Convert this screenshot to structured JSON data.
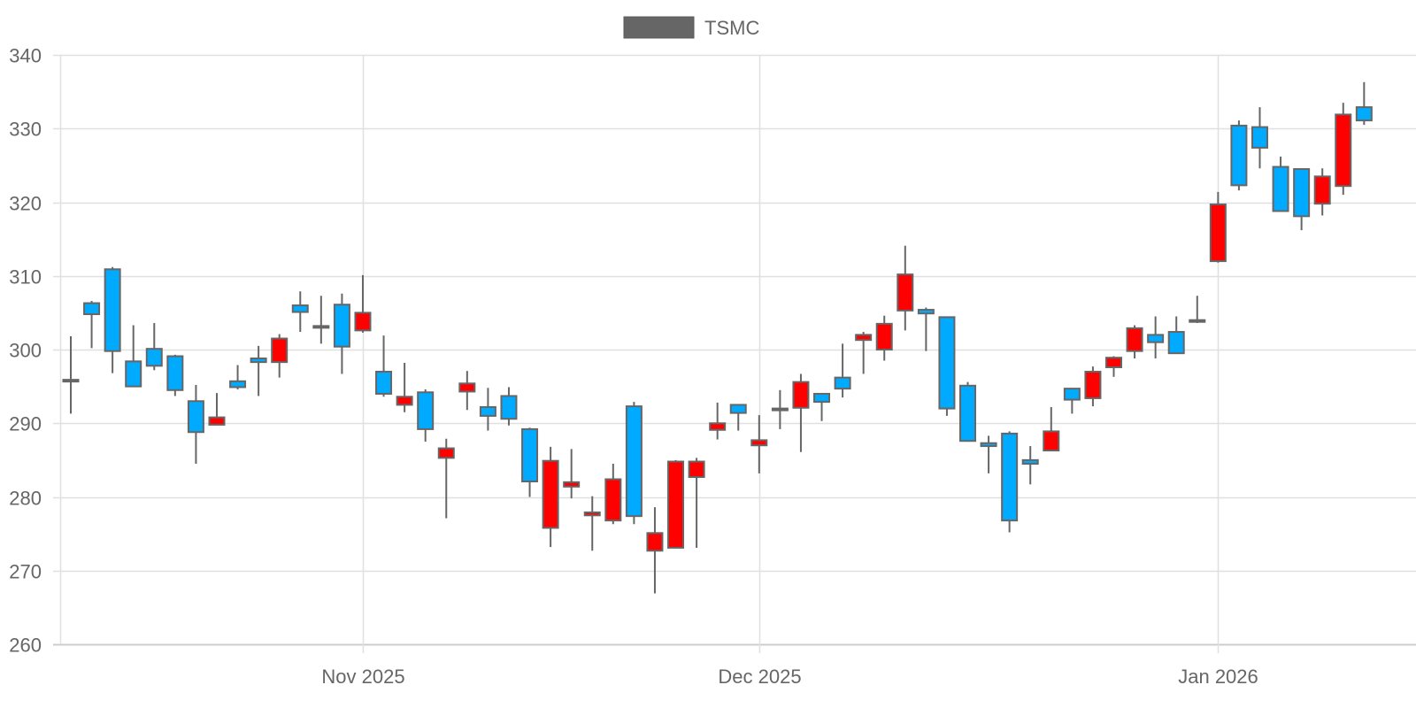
{
  "chart_data": {
    "type": "candlestick",
    "title": "",
    "xlabel": "",
    "ylabel": "",
    "ylim": [
      260,
      340
    ],
    "y_ticks": [
      260,
      270,
      280,
      290,
      300,
      310,
      320,
      330,
      340
    ],
    "x_ticks": [
      {
        "label": "Nov 2025",
        "index": 14
      },
      {
        "label": "Dec 2025",
        "index": 33
      },
      {
        "label": "Jan 2026",
        "index": 55
      }
    ],
    "grid": true,
    "legend": {
      "position": "top-center",
      "entries": [
        {
          "label": "TSMC",
          "color": "#666666"
        }
      ]
    },
    "colors": {
      "up": "#ff0000",
      "down": "#00aaff",
      "border": "#666666",
      "grid": "#e0e0e0",
      "axis": "#cccccc",
      "text": "#666666"
    },
    "series": [
      {
        "name": "TSMC",
        "ohlc": [
          {
            "o": 295.9,
            "h": 301.8,
            "l": 291.3,
            "c": 295.7
          },
          {
            "o": 306.3,
            "h": 306.6,
            "l": 300.2,
            "c": 304.8
          },
          {
            "o": 310.9,
            "h": 311.2,
            "l": 296.8,
            "c": 299.8
          },
          {
            "o": 298.4,
            "h": 303.3,
            "l": 295.0,
            "c": 295.0
          },
          {
            "o": 300.1,
            "h": 303.6,
            "l": 297.2,
            "c": 297.8
          },
          {
            "o": 299.1,
            "h": 299.3,
            "l": 293.7,
            "c": 294.5
          },
          {
            "o": 293.0,
            "h": 295.2,
            "l": 284.5,
            "c": 288.8
          },
          {
            "o": 289.8,
            "h": 294.1,
            "l": 289.8,
            "c": 290.8
          },
          {
            "o": 295.7,
            "h": 297.9,
            "l": 294.6,
            "c": 294.9
          },
          {
            "o": 298.8,
            "h": 300.5,
            "l": 293.7,
            "c": 298.3
          },
          {
            "o": 298.3,
            "h": 302.1,
            "l": 296.2,
            "c": 301.5
          },
          {
            "o": 306.0,
            "h": 307.9,
            "l": 302.4,
            "c": 305.1
          },
          {
            "o": 303.2,
            "h": 307.3,
            "l": 300.8,
            "c": 303.2
          },
          {
            "o": 306.1,
            "h": 307.6,
            "l": 296.7,
            "c": 300.4
          },
          {
            "o": 302.6,
            "h": 310.1,
            "l": 302.3,
            "c": 305.0
          },
          {
            "o": 297.0,
            "h": 301.9,
            "l": 293.6,
            "c": 294.0
          },
          {
            "o": 292.5,
            "h": 298.2,
            "l": 291.5,
            "c": 293.6
          },
          {
            "o": 294.2,
            "h": 294.6,
            "l": 287.5,
            "c": 289.2
          },
          {
            "o": 285.3,
            "h": 287.9,
            "l": 277.1,
            "c": 286.6
          },
          {
            "o": 294.3,
            "h": 297.1,
            "l": 291.8,
            "c": 295.4
          },
          {
            "o": 292.2,
            "h": 294.8,
            "l": 289.0,
            "c": 291.0
          },
          {
            "o": 293.7,
            "h": 294.9,
            "l": 289.7,
            "c": 290.6
          },
          {
            "o": 289.2,
            "h": 289.4,
            "l": 280.0,
            "c": 282.1
          },
          {
            "o": 275.8,
            "h": 286.8,
            "l": 273.2,
            "c": 284.9
          },
          {
            "o": 281.4,
            "h": 286.5,
            "l": 279.8,
            "c": 282.0
          },
          {
            "o": 277.5,
            "h": 280.1,
            "l": 272.7,
            "c": 277.9
          },
          {
            "o": 276.8,
            "h": 284.5,
            "l": 276.3,
            "c": 282.4
          },
          {
            "o": 292.3,
            "h": 292.9,
            "l": 276.3,
            "c": 277.4
          },
          {
            "o": 272.7,
            "h": 278.6,
            "l": 266.9,
            "c": 275.1
          },
          {
            "o": 273.1,
            "h": 285.0,
            "l": 273.1,
            "c": 284.8
          },
          {
            "o": 282.7,
            "h": 285.3,
            "l": 273.1,
            "c": 284.8
          },
          {
            "o": 289.1,
            "h": 292.8,
            "l": 287.8,
            "c": 290.0
          },
          {
            "o": 292.5,
            "h": 292.6,
            "l": 289.0,
            "c": 291.4
          },
          {
            "o": 287.0,
            "h": 291.1,
            "l": 283.2,
            "c": 287.7
          },
          {
            "o": 292.0,
            "h": 294.5,
            "l": 289.2,
            "c": 292.0
          },
          {
            "o": 292.1,
            "h": 296.7,
            "l": 286.1,
            "c": 295.6
          },
          {
            "o": 294.0,
            "h": 294.1,
            "l": 290.3,
            "c": 292.9
          },
          {
            "o": 296.2,
            "h": 300.8,
            "l": 293.5,
            "c": 294.7
          },
          {
            "o": 301.3,
            "h": 302.4,
            "l": 296.7,
            "c": 302.0
          },
          {
            "o": 300.0,
            "h": 304.6,
            "l": 298.5,
            "c": 303.5
          },
          {
            "o": 305.3,
            "h": 314.1,
            "l": 302.6,
            "c": 310.2
          },
          {
            "o": 305.4,
            "h": 305.7,
            "l": 299.8,
            "c": 304.9
          },
          {
            "o": 304.4,
            "h": 304.4,
            "l": 291.0,
            "c": 292.0
          },
          {
            "o": 295.1,
            "h": 295.6,
            "l": 287.5,
            "c": 287.6
          },
          {
            "o": 287.3,
            "h": 288.3,
            "l": 283.2,
            "c": 286.9
          },
          {
            "o": 288.6,
            "h": 288.9,
            "l": 275.2,
            "c": 276.8
          },
          {
            "o": 285.0,
            "h": 286.9,
            "l": 281.7,
            "c": 284.5
          },
          {
            "o": 286.3,
            "h": 292.2,
            "l": 286.3,
            "c": 288.9
          },
          {
            "o": 294.7,
            "h": 294.7,
            "l": 291.3,
            "c": 293.2
          },
          {
            "o": 293.4,
            "h": 297.7,
            "l": 292.3,
            "c": 297.0
          },
          {
            "o": 297.6,
            "h": 299.1,
            "l": 296.3,
            "c": 298.9
          },
          {
            "o": 299.8,
            "h": 303.3,
            "l": 298.8,
            "c": 302.9
          },
          {
            "o": 302.0,
            "h": 304.5,
            "l": 298.8,
            "c": 301.0
          },
          {
            "o": 302.4,
            "h": 304.5,
            "l": 299.5,
            "c": 299.5
          },
          {
            "o": 304.0,
            "h": 307.3,
            "l": 303.6,
            "c": 304.0
          },
          {
            "o": 312.0,
            "h": 321.4,
            "l": 311.8,
            "c": 319.7
          },
          {
            "o": 330.4,
            "h": 331.1,
            "l": 321.6,
            "c": 322.3
          },
          {
            "o": 330.2,
            "h": 332.9,
            "l": 324.6,
            "c": 327.4
          },
          {
            "o": 324.8,
            "h": 326.2,
            "l": 318.7,
            "c": 318.8
          },
          {
            "o": 324.5,
            "h": 324.6,
            "l": 316.2,
            "c": 318.1
          },
          {
            "o": 319.8,
            "h": 324.6,
            "l": 318.2,
            "c": 323.5
          },
          {
            "o": 322.2,
            "h": 333.5,
            "l": 321.0,
            "c": 331.9
          },
          {
            "o": 332.9,
            "h": 336.3,
            "l": 330.5,
            "c": 331.1
          }
        ]
      }
    ]
  },
  "legend": {
    "label": "TSMC"
  }
}
